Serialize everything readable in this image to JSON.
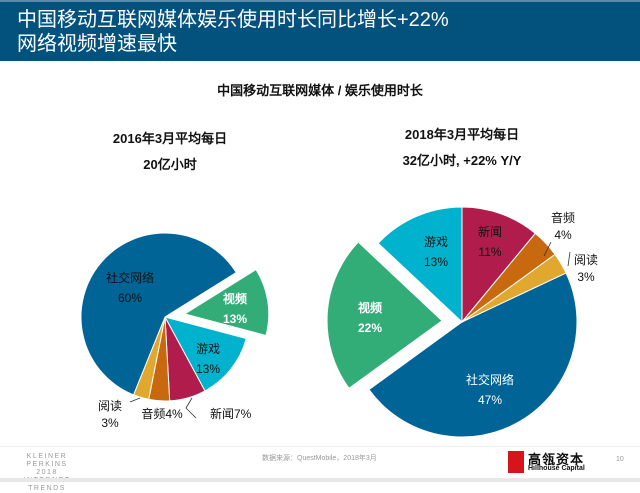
{
  "header": {
    "title_line1": "中国移动互联网媒体娱乐使用时长同比增长+22%",
    "title_line2": "网络视频增速最快"
  },
  "subtitle": "中国移动互联网媒体 / 娱乐使用时长",
  "chart_data": [
    {
      "type": "pie",
      "title_line1": "2016年3月平均每日",
      "title_line2": "20亿小时",
      "slices": [
        {
          "name": "视频",
          "value": 13,
          "label": "13%",
          "color": "#33ad78",
          "exploded": true
        },
        {
          "name": "游戏",
          "value": 13,
          "label": "13%",
          "color": "#00b2cd"
        },
        {
          "name": "新闻",
          "value": 7,
          "label": "7%",
          "color": "#b01c4c"
        },
        {
          "name": "音频",
          "value": 4,
          "label": "4%",
          "color": "#c8690f"
        },
        {
          "name": "阅读",
          "value": 3,
          "label": "3%",
          "color": "#e1a82f"
        },
        {
          "name": "社交网络",
          "value": 60,
          "label": "60%",
          "color": "#006497"
        }
      ]
    },
    {
      "type": "pie",
      "title_line1": "2018年3月平均每日",
      "title_line2": "32亿小时, +22% Y/Y",
      "slices": [
        {
          "name": "新闻",
          "value": 11,
          "label": "11%",
          "color": "#b01c4c"
        },
        {
          "name": "音频",
          "value": 4,
          "label": "4%",
          "color": "#c8690f"
        },
        {
          "name": "阅读",
          "value": 3,
          "label": "3%",
          "color": "#e1a82f"
        },
        {
          "name": "社交网络",
          "value": 47,
          "label": "47%",
          "color": "#006497"
        },
        {
          "name": "视频",
          "value": 22,
          "label": "22%",
          "color": "#33ad78",
          "exploded": true
        },
        {
          "name": "游戏",
          "value": 13,
          "label": "13%",
          "color": "#00b2cd"
        }
      ]
    }
  ],
  "footer": {
    "brand_line1": "KLEINER PERKINS",
    "brand_line2": "2018",
    "brand_line3": "INTERNET TRENDS",
    "source": "数据来源：QuestMobile，2018年3月",
    "logo_cn": "高瓴资本",
    "logo_en": "Hillhouse Capital",
    "page": "10"
  }
}
